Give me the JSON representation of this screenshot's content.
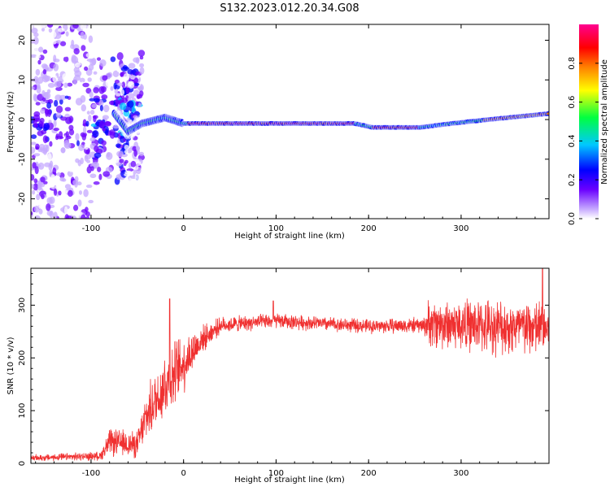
{
  "figure": {
    "title": "S132.2023.012.20.34.G08"
  },
  "chart_data": [
    {
      "type": "heatmap",
      "title": "S132.2023.012.20.34.G08",
      "xlabel": "Height of straight line (km)",
      "ylabel": "Frequency (Hz)",
      "xlim": [
        -165,
        395
      ],
      "ylim": [
        -25,
        24
      ],
      "x_ticks": [
        -100,
        0,
        100,
        200,
        300
      ],
      "y_ticks": [
        -20,
        -10,
        0,
        10,
        20
      ],
      "colorbar": {
        "label": "Normalized spectral amplitude",
        "range": [
          0.0,
          1.0
        ],
        "ticks": [
          0.0,
          0.2,
          0.4,
          0.6,
          0.8
        ],
        "colormap": [
          "#ffffff",
          "#c6a9ff",
          "#6a00ff",
          "#0000ff",
          "#00c8ff",
          "#00ff40",
          "#ffff00",
          "#ff8000",
          "#ff0000",
          "#ff0090"
        ]
      },
      "ridge_frequency_hz": [
        {
          "x": -80,
          "f": 3
        },
        {
          "x": -60,
          "f": -3
        },
        {
          "x": -45,
          "f": -1
        },
        {
          "x": -20,
          "f": 0.5
        },
        {
          "x": 0,
          "f": -1
        },
        {
          "x": 100,
          "f": -1
        },
        {
          "x": 185,
          "f": -1
        },
        {
          "x": 205,
          "f": -2
        },
        {
          "x": 255,
          "f": -2
        },
        {
          "x": 290,
          "f": -1
        },
        {
          "x": 330,
          "f": 0
        },
        {
          "x": 395,
          "f": 1.5
        }
      ]
    },
    {
      "type": "line",
      "xlabel": "Height of straight line (km)",
      "ylabel": "SNR (10 * v/v)",
      "xlim": [
        -165,
        395
      ],
      "ylim": [
        0,
        370
      ],
      "x_ticks": [
        -100,
        0,
        100,
        200,
        300
      ],
      "y_ticks": [
        0,
        100,
        200,
        300
      ],
      "color": "#f03030",
      "snr_envelope": [
        {
          "x": -165,
          "mean": 10,
          "spread": 6
        },
        {
          "x": -90,
          "mean": 14,
          "spread": 8
        },
        {
          "x": -80,
          "mean": 40,
          "spread": 25
        },
        {
          "x": -50,
          "mean": 35,
          "spread": 25
        },
        {
          "x": -40,
          "mean": 90,
          "spread": 45
        },
        {
          "x": -20,
          "mean": 150,
          "spread": 65
        },
        {
          "x": 0,
          "mean": 190,
          "spread": 55
        },
        {
          "x": 20,
          "mean": 235,
          "spread": 25
        },
        {
          "x": 40,
          "mean": 262,
          "spread": 15
        },
        {
          "x": 100,
          "mean": 270,
          "spread": 14
        },
        {
          "x": 200,
          "mean": 260,
          "spread": 13
        },
        {
          "x": 260,
          "mean": 262,
          "spread": 15
        },
        {
          "x": 265,
          "mean": 265,
          "spread": 45
        },
        {
          "x": 395,
          "mean": 255,
          "spread": 55
        }
      ],
      "peaks": [
        {
          "x": -15,
          "y": 312
        },
        {
          "x": 97,
          "y": 308
        },
        {
          "x": 388,
          "y": 370
        }
      ]
    }
  ]
}
